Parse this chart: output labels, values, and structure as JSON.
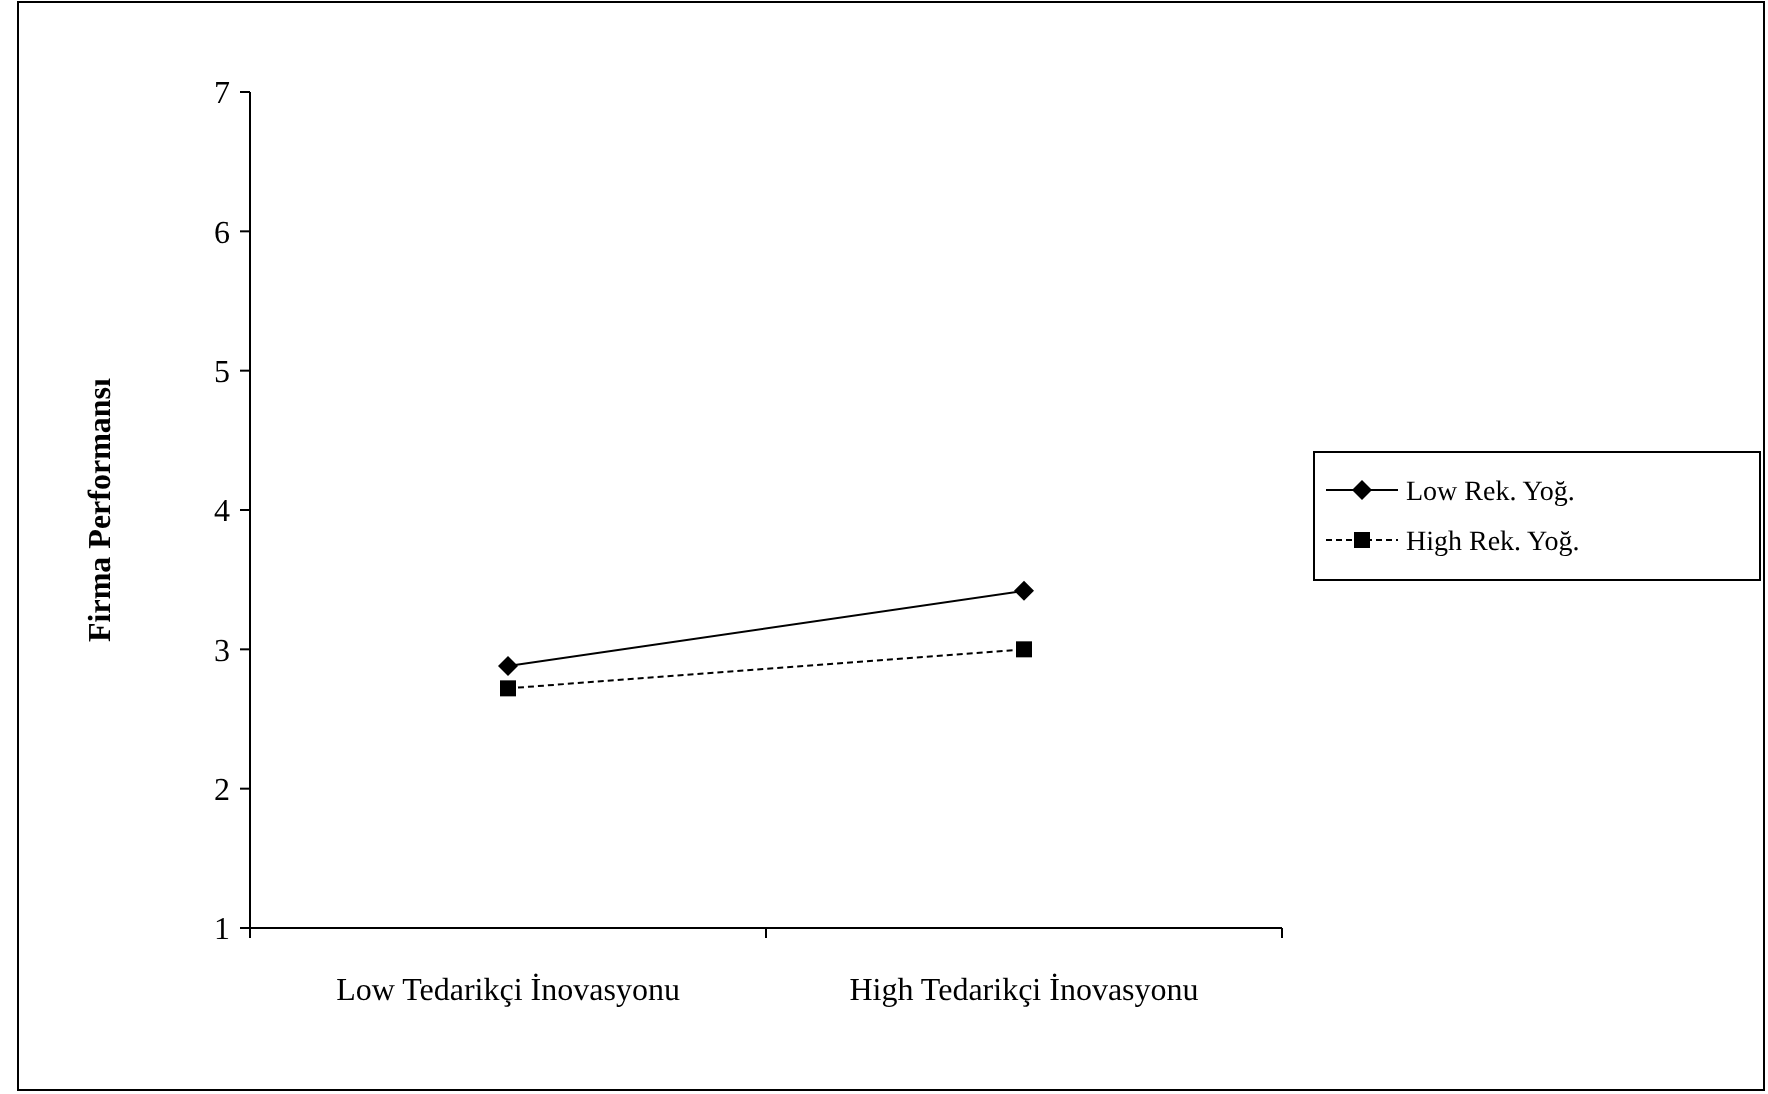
{
  "chart_data": {
    "type": "line",
    "ylabel": "Firma Performansı",
    "categories": [
      "Low Tedarikçi İnovasyonu",
      "High Tedarikçi İnovasyonu"
    ],
    "series": [
      {
        "name": "Low Rek. Yoğ.",
        "color": "#000000",
        "values": [
          2.88,
          3.42
        ],
        "marker": "diamond",
        "line_style": "solid"
      },
      {
        "name": "High Rek. Yoğ.",
        "color": "#000000",
        "values": [
          2.72,
          3.0
        ],
        "marker": "square",
        "line_style": "dashed"
      }
    ],
    "ylim": [
      1,
      7
    ],
    "yticks": [
      1,
      2,
      3,
      4,
      5,
      6,
      7
    ],
    "grid": false,
    "legend": "right"
  }
}
